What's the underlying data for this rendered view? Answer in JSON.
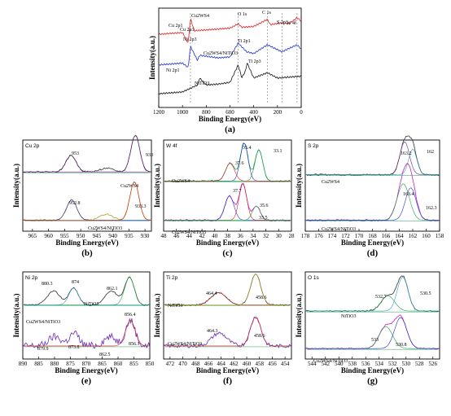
{
  "chart_data": [
    {
      "type": "line",
      "panel": "a",
      "caption": "(a)",
      "xlabel": "Binding Energy(eV)",
      "ylabel": "Intensity(a.u.)",
      "xlim": [
        1200,
        0
      ],
      "xticks": [
        1200,
        1000,
        800,
        600,
        400,
        200,
        0
      ],
      "series": [
        {
          "name": "Cu2WS4",
          "color": "#e02020",
          "points": [
            [
              1200,
              0.8
            ],
            [
              1000,
              0.82
            ],
            [
              952,
              0.7
            ],
            [
              933,
              0.98
            ],
            [
              900,
              0.84
            ],
            [
              700,
              0.86
            ],
            [
              600,
              0.87
            ],
            [
              531,
              0.92
            ],
            [
              500,
              0.88
            ],
            [
              400,
              0.89
            ],
            [
              285,
              0.97
            ],
            [
              260,
              0.91
            ],
            [
              163,
              0.93
            ],
            [
              100,
              0.92
            ],
            [
              35,
              0.99
            ],
            [
              0,
              0.95
            ]
          ]
        },
        {
          "name": "Cu2WS4/NiTiO3",
          "color": "#2030d0",
          "points": [
            [
              1200,
              0.45
            ],
            [
              1000,
              0.47
            ],
            [
              952,
              0.42
            ],
            [
              933,
              0.66
            ],
            [
              873,
              0.5
            ],
            [
              856,
              0.56
            ],
            [
              700,
              0.53
            ],
            [
              600,
              0.54
            ],
            [
              531,
              0.7
            ],
            [
              460,
              0.6
            ],
            [
              400,
              0.58
            ],
            [
              285,
              0.68
            ],
            [
              163,
              0.6
            ],
            [
              35,
              0.68
            ],
            [
              0,
              0.63
            ]
          ]
        },
        {
          "name": "NiTiO3",
          "color": "#111111",
          "points": [
            [
              1200,
              0.12
            ],
            [
              1000,
              0.14
            ],
            [
              873,
              0.22
            ],
            [
              856,
              0.3
            ],
            [
              800,
              0.22
            ],
            [
              700,
              0.23
            ],
            [
              600,
              0.25
            ],
            [
              531,
              0.45
            ],
            [
              500,
              0.3
            ],
            [
              464,
              0.4
            ],
            [
              458,
              0.48
            ],
            [
              400,
              0.3
            ],
            [
              285,
              0.36
            ],
            [
              200,
              0.3
            ],
            [
              100,
              0.31
            ],
            [
              0,
              0.32
            ]
          ]
        }
      ],
      "annotations": [
        "Cu2WS4",
        "O 1s",
        "C 1s",
        "S 2p3",
        "W 4f",
        "Cu 2p1",
        "Cu 2p3",
        "Ni 2p3",
        "Ti 2p1",
        "Cu2WS4/NiTiO3",
        "Ti 2p3",
        "Ni 2p1",
        "NiTiO3"
      ]
    },
    {
      "type": "line",
      "panel": "b",
      "caption": "(b)",
      "title": "Cu 2p",
      "xlabel": "Binding Energy(eV)",
      "ylabel": "Intensity(a.u.)",
      "xlim": [
        968,
        928
      ],
      "xticks": [
        965,
        960,
        955,
        950,
        945,
        940,
        935,
        930
      ],
      "peaks": [
        953,
        933,
        952.8,
        933.3
      ],
      "annotations": [
        "953",
        "933",
        "Cu2WS4",
        "952.8",
        "933.3",
        "Cu2WS4/NiTiO3"
      ]
    },
    {
      "type": "line",
      "panel": "c",
      "caption": "(c)",
      "title": "W 4f",
      "xlabel": "Binding Energy(eV)",
      "ylabel": "Intensity(a.u.)",
      "xlim": [
        48,
        28
      ],
      "xticks": [
        48,
        46,
        44,
        42,
        40,
        38,
        36,
        34,
        32,
        30,
        28
      ],
      "peaks": [
        35.4,
        37.6,
        33.1,
        37.7,
        35.6,
        33.5
      ],
      "annotations": [
        "35.4",
        "37.6",
        "33.1",
        "Cu2WS4",
        "37.7",
        "35.6",
        "33.5",
        "Cu2WS4/NiTiO3"
      ]
    },
    {
      "type": "line",
      "panel": "d",
      "caption": "(d)",
      "title": "S 2p",
      "xlabel": "Binding Energy(eV)",
      "ylabel": "Intensity(a.u.)",
      "xlim": [
        178,
        158
      ],
      "xticks": [
        178,
        176,
        174,
        172,
        170,
        168,
        166,
        164,
        162,
        160,
        158
      ],
      "peaks": [
        163.2,
        162,
        163.4,
        162.3
      ],
      "annotations": [
        "163.2",
        "162",
        "Cu2WS4",
        "163.4",
        "162.3",
        "Cu2WS4/NiTiO3"
      ]
    },
    {
      "type": "line",
      "panel": "e",
      "caption": "(e)",
      "title": "Ni 2p",
      "xlabel": "Binding Energy(eV)",
      "ylabel": "Intensity(a.u.)",
      "xlim": [
        890,
        850
      ],
      "xticks": [
        890,
        885,
        880,
        875,
        870,
        865,
        860,
        855,
        850
      ],
      "peaks": [
        880.3,
        874,
        862.1,
        856.4,
        879.9,
        873.8,
        862.5,
        856.1
      ],
      "annotations": [
        "880.3",
        "874",
        "862.1",
        "NiTiO3",
        "856.4",
        "Cu2WS4/NiTiO3",
        "879.9",
        "873.8",
        "862.5",
        "856.1"
      ]
    },
    {
      "type": "line",
      "panel": "f",
      "caption": "(f)",
      "title": "Ti 2p",
      "xlabel": "Binding Energy(eV)",
      "ylabel": "Intensity(a.u.)",
      "xlim": [
        473,
        453
      ],
      "xticks": [
        472,
        470,
        468,
        466,
        464,
        462,
        460,
        458,
        456,
        454
      ],
      "peaks": [
        464.4,
        458.6,
        464.3,
        458.6
      ],
      "annotations": [
        "464.4",
        "458.6",
        "NiTiO3",
        "464.3",
        "458.6",
        "Cu2WS4/NiTiO3"
      ]
    },
    {
      "type": "line",
      "panel": "g",
      "caption": "(g)",
      "title": "O 1s",
      "xlabel": "Binding Energy(eV)",
      "ylabel": "Intensity(a.u.)",
      "xlim": [
        545,
        525
      ],
      "xticks": [
        544,
        542,
        540,
        538,
        536,
        534,
        532,
        530,
        528,
        526
      ],
      "peaks": [
        532.7,
        530.5,
        533,
        530.8
      ],
      "annotations": [
        "532.7",
        "530.5",
        "NiTiO3",
        "533",
        "530.8",
        "Cu2WS4/NiTiO3"
      ]
    }
  ]
}
